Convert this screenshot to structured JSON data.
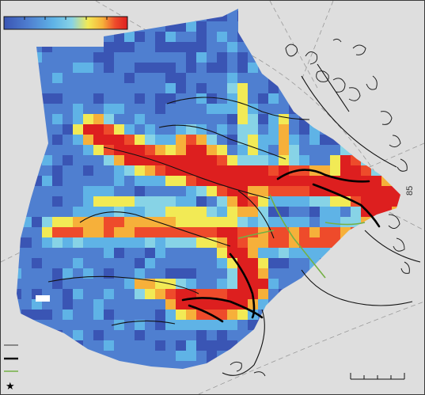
{
  "map": {
    "background_color": "#dedede",
    "heat_palette": [
      "#3a55b4",
      "#4f7fd0",
      "#5fb3e6",
      "#87d3e6",
      "#f2ea55",
      "#f6b03a",
      "#ee4b2b",
      "#dd1f1f"
    ],
    "graticule_label": "85",
    "colorbar": {
      "colors": [
        "#3a55b4",
        "#4f7fd0",
        "#5fb3e6",
        "#87d3e6",
        "#f2ea55",
        "#f6b03a",
        "#ee4b2b",
        "#dd1f1f"
      ]
    },
    "legend": {
      "items": [
        {
          "color": "#333333",
          "style": "thin"
        },
        {
          "color": "#111111",
          "style": "thick"
        },
        {
          "color": "#74b044",
          "style": "thin"
        }
      ],
      "marker_icon": "star-icon",
      "marker_symbol": "★"
    },
    "scale_bar_ticks": 5
  }
}
